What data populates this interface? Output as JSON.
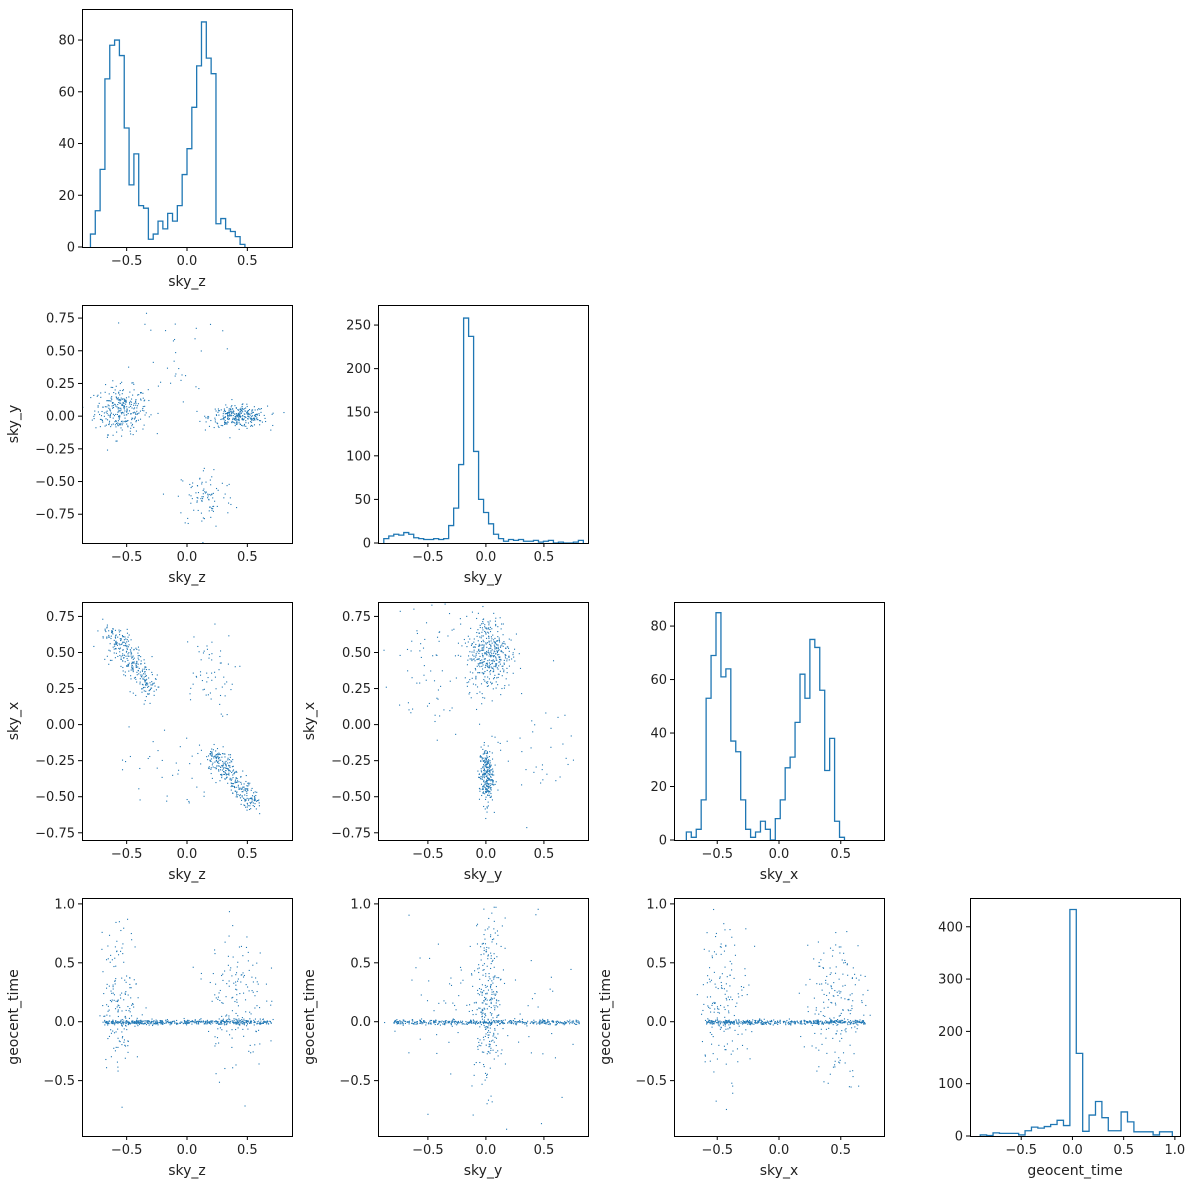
{
  "chart_data": [
    {
      "type": "histogram",
      "panel": "r0c0",
      "xlabel": "sky_z",
      "ylabel": "",
      "xlim": [
        -0.87,
        0.87
      ],
      "ylim": [
        0,
        92
      ],
      "xticks": [
        -0.5,
        0.0,
        0.5
      ],
      "xtick_labels": [
        "−0.5",
        "0.0",
        "0.5"
      ],
      "yticks": [
        0,
        20,
        40,
        60,
        80
      ],
      "ytick_labels": [
        "0",
        "20",
        "40",
        "60",
        "80"
      ],
      "bin_start": -0.8,
      "bin_width": 0.04,
      "counts": [
        5,
        14,
        30,
        65,
        78,
        80,
        74,
        46,
        24,
        36,
        16,
        15,
        3,
        5,
        10,
        7,
        13,
        10,
        16,
        28,
        38,
        54,
        70,
        87,
        73,
        67,
        9,
        11,
        7,
        6,
        4,
        1
      ]
    },
    {
      "type": "scatter",
      "panel": "r1c0",
      "xlabel": "sky_z",
      "ylabel": "sky_y",
      "xlim": [
        -0.87,
        0.87
      ],
      "ylim": [
        -0.97,
        0.85
      ],
      "xticks": [
        -0.5,
        0.0,
        0.5
      ],
      "xtick_labels": [
        "−0.5",
        "0.0",
        "0.5"
      ],
      "yticks": [
        -0.75,
        -0.5,
        -0.25,
        0.0,
        0.25,
        0.5,
        0.75
      ],
      "ytick_labels": [
        "−0.75",
        "−0.50",
        "−0.25",
        "0.00",
        "0.25",
        "0.50",
        "0.75"
      ],
      "clusters": [
        {
          "cx": -0.55,
          "cy": 0.05,
          "sx": 0.11,
          "sy": 0.09,
          "n": 300
        },
        {
          "cx": 0.42,
          "cy": 0.0,
          "sx": 0.12,
          "sy": 0.04,
          "n": 300
        },
        {
          "cx": 0.15,
          "cy": -0.62,
          "sx": 0.12,
          "sy": 0.12,
          "n": 90
        },
        {
          "cx": -0.1,
          "cy": 0.5,
          "sx": 0.18,
          "sy": 0.2,
          "n": 35
        }
      ]
    },
    {
      "type": "histogram",
      "panel": "r1c1",
      "xlabel": "sky_y",
      "ylabel": "",
      "xlim": [
        -0.93,
        0.88
      ],
      "ylim": [
        0,
        273
      ],
      "xticks": [
        -0.5,
        0.0,
        0.5
      ],
      "xtick_labels": [
        "−0.5",
        "0.0",
        "0.5"
      ],
      "yticks": [
        0,
        50,
        100,
        150,
        200,
        250
      ],
      "ytick_labels": [
        "0",
        "50",
        "100",
        "150",
        "200",
        "250"
      ],
      "bin_start": -0.88,
      "bin_width": 0.043,
      "counts": [
        5,
        8,
        10,
        9,
        12,
        10,
        6,
        5,
        4,
        4,
        5,
        4,
        5,
        20,
        40,
        90,
        258,
        237,
        105,
        50,
        35,
        22,
        10,
        5,
        2,
        4,
        3,
        4,
        2,
        2,
        3,
        1,
        2,
        3,
        0,
        1,
        0,
        0,
        1,
        3
      ]
    },
    {
      "type": "scatter",
      "panel": "r2c0",
      "xlabel": "sky_z",
      "ylabel": "sky_x",
      "xlim": [
        -0.87,
        0.87
      ],
      "ylim": [
        -0.8,
        0.85
      ],
      "xticks": [
        -0.5,
        0.0,
        0.5
      ],
      "xtick_labels": [
        "−0.5",
        "0.0",
        "0.5"
      ],
      "yticks": [
        -0.75,
        -0.5,
        -0.25,
        0.0,
        0.25,
        0.5,
        0.75
      ],
      "ytick_labels": [
        "−0.75",
        "−0.50",
        "−0.25",
        "0.00",
        "0.25",
        "0.50",
        "0.75"
      ],
      "diagonals": [
        {
          "x0": -0.65,
          "y0": 0.65,
          "x1": -0.3,
          "y1": 0.25,
          "spread": 0.05,
          "n": 300
        },
        {
          "x0": 0.2,
          "y0": -0.2,
          "x1": 0.55,
          "y1": -0.55,
          "spread": 0.04,
          "n": 300
        }
      ],
      "clusters": [
        {
          "cx": 0.15,
          "cy": 0.35,
          "sx": 0.12,
          "sy": 0.15,
          "n": 60
        },
        {
          "cx": -0.15,
          "cy": -0.3,
          "sx": 0.2,
          "sy": 0.15,
          "n": 40
        }
      ]
    },
    {
      "type": "scatter",
      "panel": "r2c1",
      "xlabel": "sky_y",
      "ylabel": "sky_x",
      "xlim": [
        -0.93,
        0.88
      ],
      "ylim": [
        -0.8,
        0.85
      ],
      "xticks": [
        -0.5,
        0.0,
        0.5
      ],
      "xtick_labels": [
        "−0.5",
        "0.0",
        "0.5"
      ],
      "yticks": [
        -0.75,
        -0.5,
        -0.25,
        0.0,
        0.25,
        0.5,
        0.75
      ],
      "ytick_labels": [
        "−0.75",
        "−0.50",
        "−0.25",
        "0.00",
        "0.25",
        "0.50",
        "0.75"
      ],
      "clusters": [
        {
          "cx": 0.02,
          "cy": 0.5,
          "sx": 0.1,
          "sy": 0.13,
          "n": 420
        },
        {
          "cx": 0.0,
          "cy": -0.35,
          "sx": 0.03,
          "sy": 0.1,
          "n": 260
        },
        {
          "cx": -0.55,
          "cy": 0.35,
          "sx": 0.18,
          "sy": 0.25,
          "n": 60
        },
        {
          "cx": 0.45,
          "cy": -0.15,
          "sx": 0.2,
          "sy": 0.25,
          "n": 40
        }
      ]
    },
    {
      "type": "histogram",
      "panel": "r2c2",
      "xlabel": "sky_x",
      "ylabel": "",
      "xlim": [
        -0.85,
        0.85
      ],
      "ylim": [
        0,
        89
      ],
      "xticks": [
        -0.5,
        0.0,
        0.5
      ],
      "xtick_labels": [
        "−0.5",
        "0.0",
        "0.5"
      ],
      "yticks": [
        0,
        20,
        40,
        60,
        80
      ],
      "ytick_labels": [
        "0",
        "20",
        "40",
        "60",
        "80"
      ],
      "bin_start": -0.75,
      "bin_width": 0.04,
      "counts": [
        3,
        1,
        4,
        15,
        53,
        69,
        85,
        61,
        64,
        37,
        33,
        15,
        4,
        1,
        3,
        7,
        4,
        0,
        8,
        15,
        27,
        31,
        44,
        62,
        53,
        75,
        72,
        56,
        26,
        38,
        7,
        1
      ]
    },
    {
      "type": "scatter",
      "panel": "r3c0",
      "xlabel": "sky_z",
      "ylabel": "geocent_time",
      "xlim": [
        -0.87,
        0.87
      ],
      "ylim": [
        -0.97,
        1.05
      ],
      "xticks": [
        -0.5,
        0.0,
        0.5
      ],
      "xtick_labels": [
        "−0.5",
        "0.0",
        "0.5"
      ],
      "yticks": [
        -0.5,
        0.0,
        0.5,
        1.0
      ],
      "ytick_labels": [
        "−0.5",
        "0.0",
        "0.5",
        "1.0"
      ],
      "bands": [
        {
          "y": 0.0,
          "x0": -0.7,
          "x1": 0.7,
          "spread": 0.01,
          "n": 500
        }
      ],
      "clusters": [
        {
          "cx": -0.55,
          "cy": 0.2,
          "sx": 0.08,
          "sy": 0.3,
          "n": 160
        },
        {
          "cx": 0.4,
          "cy": 0.2,
          "sx": 0.12,
          "sy": 0.3,
          "n": 160
        }
      ]
    },
    {
      "type": "scatter",
      "panel": "r3c1",
      "xlabel": "sky_y",
      "ylabel": "geocent_time",
      "xlim": [
        -0.93,
        0.88
      ],
      "ylim": [
        -0.97,
        1.05
      ],
      "xticks": [
        -0.5,
        0.0,
        0.5
      ],
      "xtick_labels": [
        "−0.5",
        "0.0",
        "0.5"
      ],
      "yticks": [
        -0.5,
        0.0,
        0.5,
        1.0
      ],
      "ytick_labels": [
        "−0.5",
        "0.0",
        "0.5",
        "1.0"
      ],
      "bands": [
        {
          "y": 0.0,
          "x0": -0.8,
          "x1": 0.8,
          "spread": 0.01,
          "n": 400
        }
      ],
      "clusters": [
        {
          "cx": 0.02,
          "cy": 0.15,
          "sx": 0.06,
          "sy": 0.35,
          "n": 280
        },
        {
          "cx": -0.4,
          "cy": 0.2,
          "sx": 0.25,
          "sy": 0.35,
          "n": 50
        },
        {
          "cx": 0.4,
          "cy": 0.0,
          "sx": 0.25,
          "sy": 0.35,
          "n": 40
        }
      ]
    },
    {
      "type": "scatter",
      "panel": "r3c2",
      "xlabel": "sky_x",
      "ylabel": "geocent_time",
      "xlim": [
        -0.85,
        0.85
      ],
      "ylim": [
        -0.97,
        1.05
      ],
      "xticks": [
        -0.5,
        0.0,
        0.5
      ],
      "xtick_labels": [
        "−0.5",
        "0.0",
        "0.5"
      ],
      "yticks": [
        -0.5,
        0.0,
        0.5,
        1.0
      ],
      "ytick_labels": [
        "−0.5",
        "0.0",
        "0.5",
        "1.0"
      ],
      "bands": [
        {
          "y": 0.0,
          "x0": -0.6,
          "x1": 0.7,
          "spread": 0.01,
          "n": 450
        }
      ],
      "clusters": [
        {
          "cx": -0.45,
          "cy": 0.2,
          "sx": 0.1,
          "sy": 0.32,
          "n": 160
        },
        {
          "cx": 0.45,
          "cy": 0.15,
          "sx": 0.12,
          "sy": 0.32,
          "n": 180
        }
      ]
    },
    {
      "type": "histogram",
      "panel": "r3c3",
      "xlabel": "geocent_time",
      "ylabel": "",
      "xlim": [
        -1.0,
        1.05
      ],
      "ylim": [
        0,
        455
      ],
      "xticks": [
        -0.5,
        0.0,
        0.5,
        1.0
      ],
      "xtick_labels": [
        "−0.5",
        "0.0",
        "0.5",
        "1.0"
      ],
      "yticks": [
        0,
        100,
        200,
        300,
        400
      ],
      "ytick_labels": [
        "0",
        "100",
        "200",
        "300",
        "400"
      ],
      "bin_start": -0.9,
      "bin_width": 0.0625,
      "counts": [
        2,
        1,
        6,
        5,
        5,
        5,
        2,
        10,
        17,
        15,
        18,
        22,
        30,
        20,
        433,
        158,
        9,
        40,
        66,
        35,
        10,
        10,
        46,
        27,
        8,
        8,
        8,
        2,
        8,
        8
      ]
    }
  ],
  "colors": {
    "series": "#1f77b4",
    "axes": "#000000",
    "text": "#222222"
  }
}
